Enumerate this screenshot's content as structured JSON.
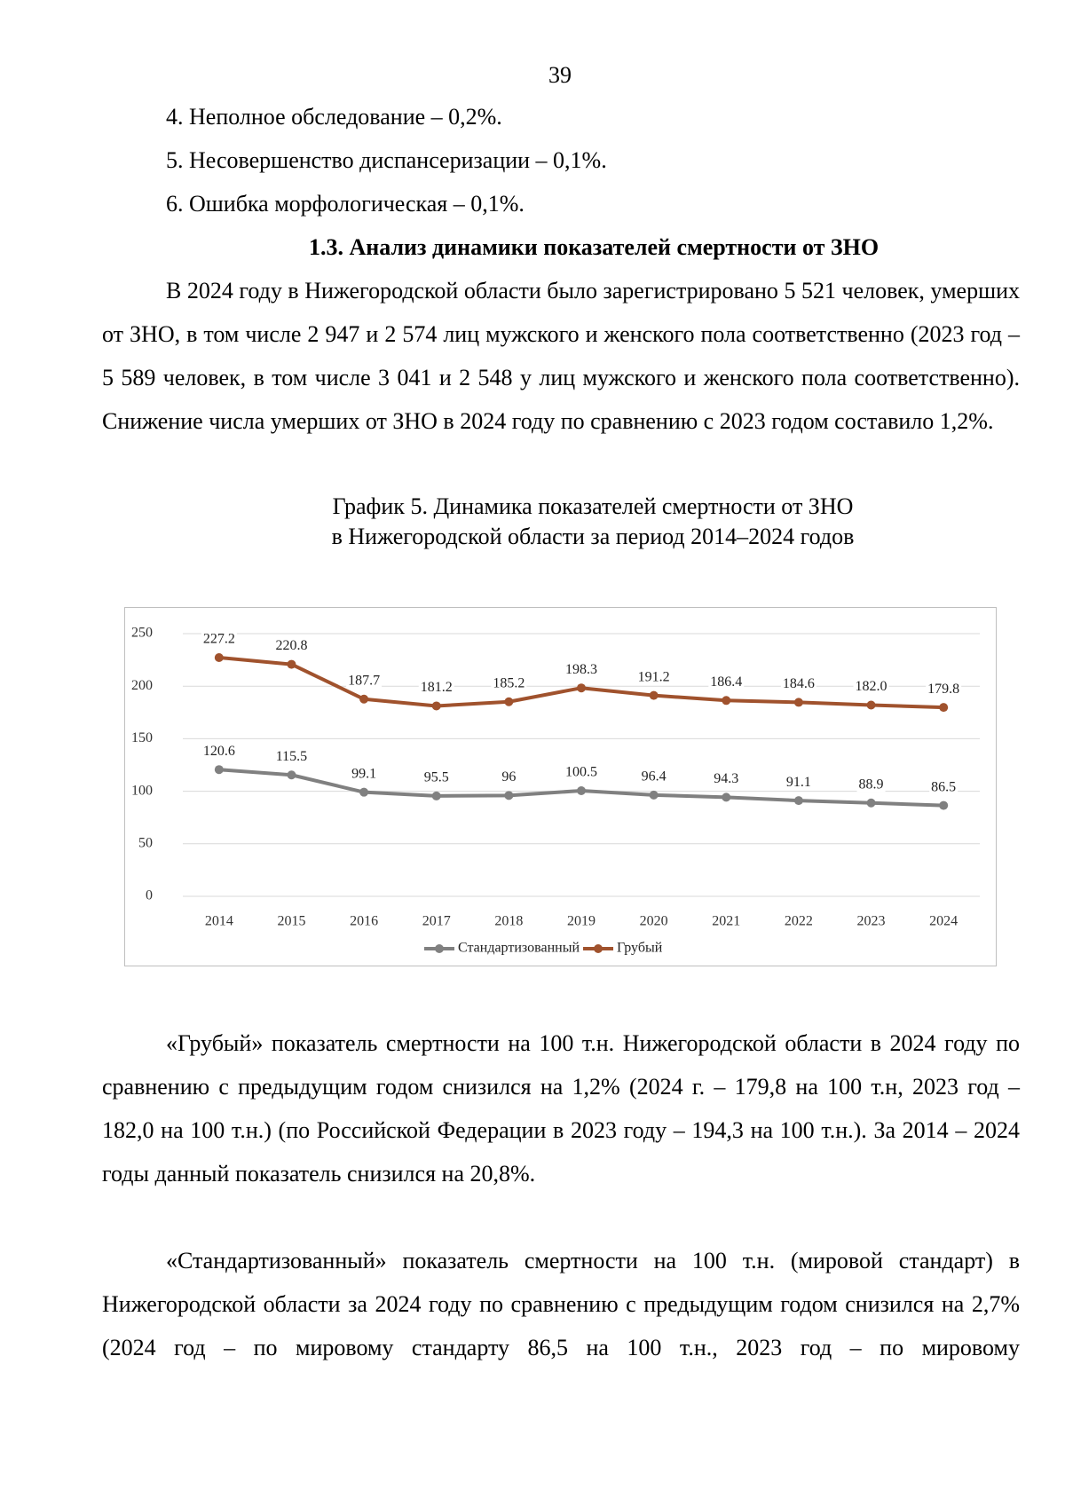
{
  "page_number": "39",
  "list": [
    "4. Неполное обследование – 0,2%.",
    "5. Несовершенство диспансеризации – 0,1%.",
    "6. Ошибка морфологическая – 0,1%."
  ],
  "heading": "1.3. Анализ динамики показателей смертности от ЗНО",
  "paragraphs": [
    "В 2024 году в Нижегородской области было зарегистрировано 5 521 человек, умерших от ЗНО, в том числе 2 947 и 2 574 лиц мужского и женского пола соответственно (2023 год – 5 589 человек, в том числе 3 041 и 2 548 у лиц мужского и женского пола соответственно). Снижение числа умерших от ЗНО в 2024 году по сравнению с 2023 годом составило 1,2%.",
    "«Грубый» показатель смертности на 100 т.н. Нижегородской области в 2024 году по сравнению с предыдущим годом снизился на 1,2% (2024 г. – 179,8 на 100 т.н, 2023 год – 182,0 на 100 т.н.) (по Российской Федерации в 2023 году – 194,3 на 100 т.н.). За 2014 – 2024 годы данный показатель снизился на 20,8%.",
    "«Стандартизованный» показатель смертности на 100 т.н. (мировой стандарт) в Нижегородской области за 2024 году по сравнению с предыдущим годом снизился на 2,7% (2024 год – по мировому стандарту 86,5 на 100 т.н., 2023 год – по мировому"
  ],
  "caption": [
    "График 5. Динамика показателей смертности от ЗНО",
    "в Нижегородской области за период 2014–2024 годов"
  ],
  "chart_data": {
    "type": "line",
    "categories": [
      "2014",
      "2015",
      "2016",
      "2017",
      "2018",
      "2019",
      "2020",
      "2021",
      "2022",
      "2023",
      "2024"
    ],
    "series": [
      {
        "name": "Стандартизованный",
        "color": "#808080",
        "values": [
          120.6,
          115.5,
          99.1,
          95.5,
          96,
          100.5,
          96.4,
          94.3,
          91.1,
          88.9,
          86.5
        ],
        "value_labels": [
          "120.6",
          "115.5",
          "99.1",
          "95.5",
          "96",
          "100.5",
          "96.4",
          "94.3",
          "91.1",
          "88.9",
          "86.5"
        ]
      },
      {
        "name": "Грубый",
        "color": "#a0522d",
        "values": [
          227.2,
          220.8,
          187.7,
          181.2,
          185.2,
          198.3,
          191.2,
          186.4,
          184.6,
          182.0,
          179.8
        ],
        "value_labels": [
          "227.2",
          "220.8",
          "187.7",
          "181.2",
          "185.2",
          "198.3",
          "191.2",
          "186.4",
          "184.6",
          "182.0",
          "179.8"
        ]
      }
    ],
    "ylim": [
      0,
      250
    ],
    "yticks": [
      0,
      50,
      100,
      150,
      200,
      250
    ],
    "grid": true,
    "legend": "bottom"
  }
}
